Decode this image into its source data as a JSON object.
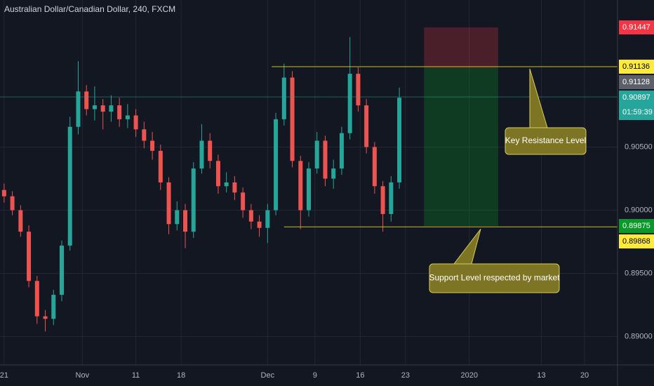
{
  "chart_data": {
    "type": "candlestick",
    "title": "Australian Dollar/Canadian Dollar, 240, FXCM",
    "x": [
      2,
      6,
      10,
      14,
      18,
      22,
      26,
      30,
      34,
      38,
      42,
      46,
      50,
      54,
      58,
      62,
      66,
      70,
      74,
      78,
      82,
      86,
      90,
      94,
      98,
      102,
      106,
      110,
      114,
      118,
      122,
      126,
      130,
      134,
      138,
      142,
      146,
      150,
      154,
      158,
      162,
      166,
      170,
      174,
      178,
      182,
      186,
      190,
      194
    ],
    "open": [
      0.9016,
      0.9011,
      0.9,
      0.8983,
      0.8944,
      0.8916,
      0.8914,
      0.8933,
      0.8972,
      0.9066,
      0.9094,
      0.908,
      0.9083,
      0.9078,
      0.9083,
      0.9072,
      0.9075,
      0.9064,
      0.9055,
      0.9047,
      0.9022,
      0.8989,
      0.9,
      0.8983,
      0.9033,
      0.9055,
      0.9039,
      0.9019,
      0.9022,
      0.9014,
      0.9,
      0.8991,
      0.8986,
      0.9,
      0.9072,
      0.9105,
      0.9039,
      0.9,
      0.9033,
      0.9055,
      0.9025,
      0.9033,
      0.9061,
      0.9108,
      0.9083,
      0.905,
      0.9019,
      0.8997,
      0.9022
    ],
    "high": [
      0.9021,
      0.9015,
      0.9004,
      0.8988,
      0.8948,
      0.8921,
      0.8937,
      0.8976,
      0.9074,
      0.9118,
      0.9099,
      0.9098,
      0.9088,
      0.9091,
      0.9089,
      0.9084,
      0.908,
      0.907,
      0.9062,
      0.9052,
      0.9026,
      0.9007,
      0.9005,
      0.9038,
      0.9068,
      0.9061,
      0.9044,
      0.903,
      0.9027,
      0.9018,
      0.9005,
      0.8996,
      0.9005,
      0.9077,
      0.9116,
      0.911,
      0.9043,
      0.9038,
      0.9062,
      0.9059,
      0.904,
      0.9066,
      0.9137,
      0.9113,
      0.9088,
      0.9054,
      0.9023,
      0.9027,
      0.9097
    ],
    "low": [
      0.9006,
      0.8996,
      0.8979,
      0.8939,
      0.891,
      0.8904,
      0.8909,
      0.8928,
      0.8968,
      0.906,
      0.9075,
      0.9071,
      0.9064,
      0.907,
      0.9066,
      0.9065,
      0.9058,
      0.9049,
      0.904,
      0.9016,
      0.8981,
      0.8984,
      0.897,
      0.8978,
      0.9029,
      0.9033,
      0.9013,
      0.9014,
      0.9008,
      0.8994,
      0.8985,
      0.8979,
      0.8974,
      0.8996,
      0.9067,
      0.9034,
      0.8985,
      0.8995,
      0.9029,
      0.9019,
      0.9017,
      0.9028,
      0.9056,
      0.9078,
      0.9045,
      0.9013,
      0.8983,
      0.8991,
      0.9017
    ],
    "close": [
      0.9011,
      0.9,
      0.8983,
      0.8944,
      0.8916,
      0.8914,
      0.8933,
      0.8972,
      0.9066,
      0.9094,
      0.908,
      0.9083,
      0.9078,
      0.9083,
      0.9072,
      0.9075,
      0.9064,
      0.9055,
      0.9047,
      0.9022,
      0.8989,
      0.9,
      0.8983,
      0.9033,
      0.9055,
      0.9039,
      0.9019,
      0.9022,
      0.9014,
      0.9,
      0.8991,
      0.8986,
      0.9,
      0.9072,
      0.9105,
      0.9039,
      0.9,
      0.9033,
      0.9055,
      0.9025,
      0.9033,
      0.9061,
      0.9108,
      0.9083,
      0.905,
      0.9019,
      0.8997,
      0.9022,
      0.9089
    ],
    "up_color": "#26a69a",
    "down_color": "#ef5350",
    "ylim": [
      0.88775,
      0.91664
    ],
    "yticks": [
      {
        "value": 0.89,
        "label": "0.89000"
      },
      {
        "value": 0.895,
        "label": "0.89500"
      },
      {
        "value": 0.9,
        "label": "0.90000"
      },
      {
        "value": 0.905,
        "label": "0.90500"
      }
    ],
    "xlim": [
      0,
      300
    ],
    "xticks": [
      {
        "value": 2,
        "label": "21"
      },
      {
        "value": 40,
        "label": "Nov"
      },
      {
        "value": 66,
        "label": "11"
      },
      {
        "value": 88,
        "label": "18"
      },
      {
        "value": 130,
        "label": "Dec"
      },
      {
        "value": 153,
        "label": "9"
      },
      {
        "value": 175,
        "label": "16"
      },
      {
        "value": 197,
        "label": "23"
      },
      {
        "value": 228,
        "label": "2020"
      },
      {
        "value": 263,
        "label": "13"
      },
      {
        "value": 284,
        "label": "20"
      }
    ],
    "grid": true,
    "levels": [
      {
        "value": 0.91136,
        "from": 132,
        "color": "#c9bd2c",
        "text": "Key Resistance Level"
      },
      {
        "value": 0.89868,
        "from": 138,
        "color": "#c9bd2c",
        "text": "Support Level respected by market"
      }
    ],
    "position": {
      "entry": 0.91128,
      "stop": 0.91447,
      "target": 0.89875,
      "x_start": 206,
      "x_end": 242
    },
    "last": {
      "value": 0.90897,
      "countdown": "01:59:39",
      "color": "#26a69a"
    }
  }
}
